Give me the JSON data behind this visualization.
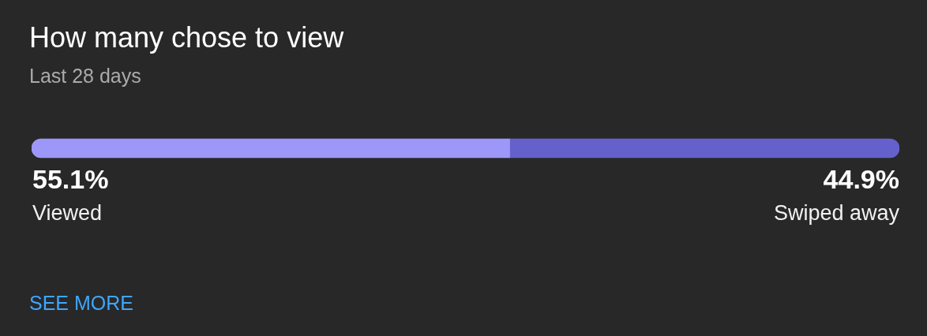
{
  "chart_data": {
    "type": "bar",
    "title": "How many chose to view",
    "subtitle": "Last 28 days",
    "orientation": "horizontal",
    "stacked": true,
    "categories": [
      null
    ],
    "series": [
      {
        "name": "Viewed",
        "color": "#9d97fa",
        "values": [
          55.1
        ],
        "value_labels": [
          "55.1%"
        ]
      },
      {
        "name": "Swiped away",
        "color": "#6461cc",
        "values": [
          44.9
        ],
        "value_labels": [
          "44.9%"
        ]
      }
    ],
    "xlim": [
      0,
      100
    ],
    "tick_labels": false,
    "annotations": [
      "SEE MORE"
    ]
  }
}
